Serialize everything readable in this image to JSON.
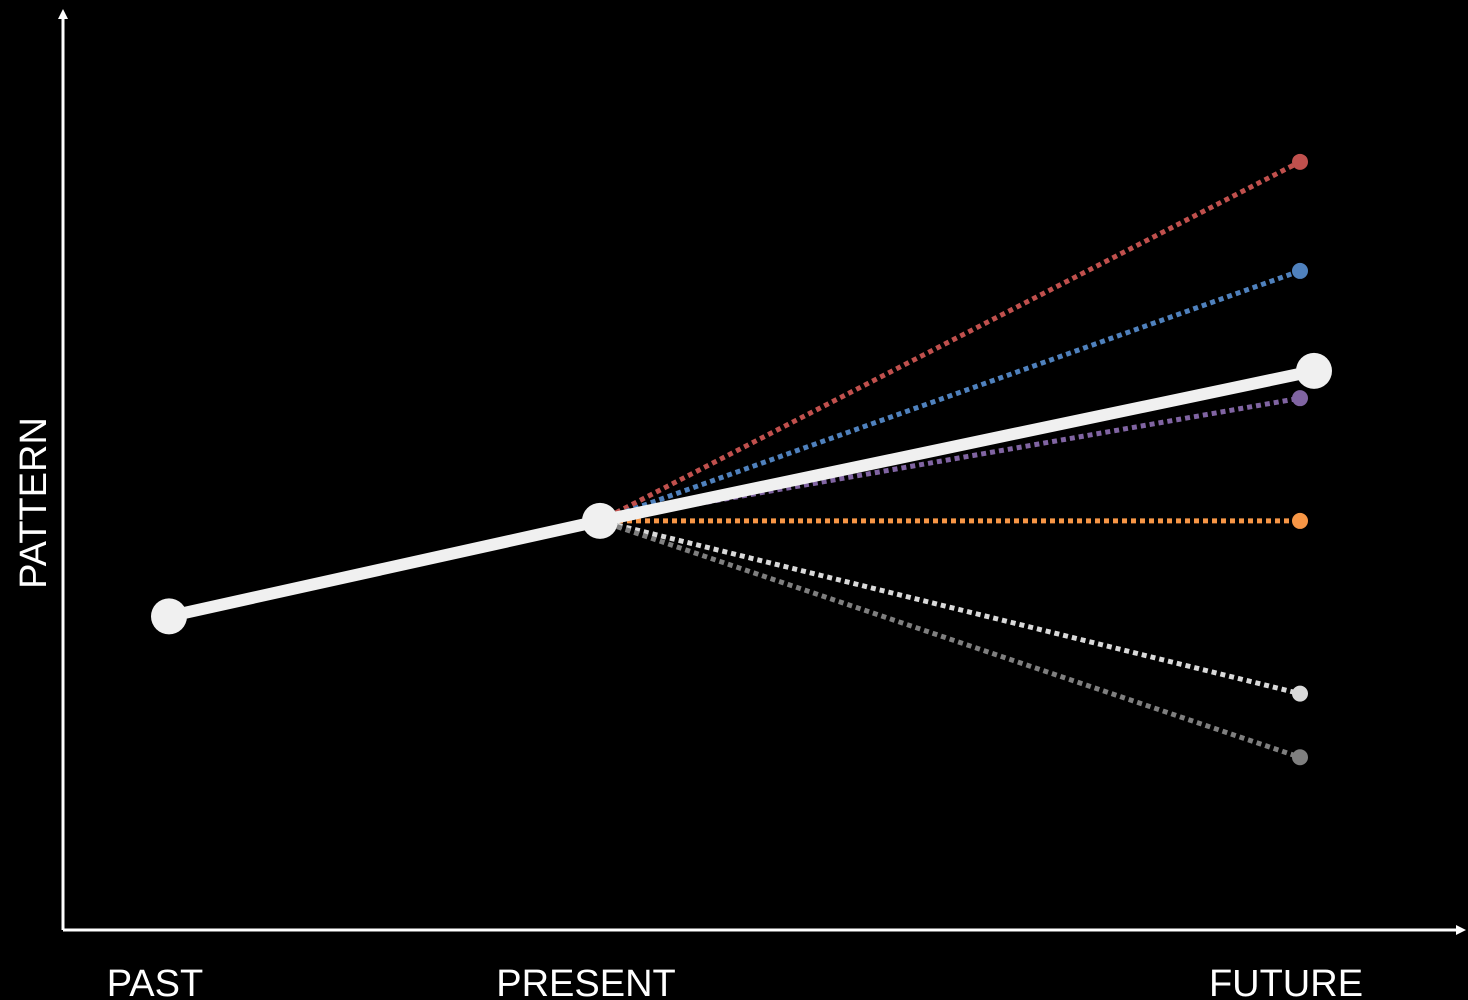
{
  "chart_data": {
    "type": "line",
    "title": "",
    "xlabel": "",
    "ylabel": "PATTERN",
    "categories": [
      "PAST",
      "PRESENT",
      "FUTURE"
    ],
    "main_path": {
      "name": "",
      "color": "#f0f0f0",
      "style": "solid",
      "values": [
        2.45,
        3.5,
        5.15
      ]
    },
    "scenarios": [
      {
        "name": "",
        "color": "#c0504d",
        "style": "dotted",
        "from": "PRESENT",
        "values": [
          3.5,
          7.45
        ]
      },
      {
        "name": "",
        "color": "#4f81bd",
        "style": "dotted",
        "from": "PRESENT",
        "values": [
          3.5,
          6.25
        ]
      },
      {
        "name": "",
        "color": "#8064a2",
        "style": "dotted",
        "from": "PRESENT",
        "values": [
          3.5,
          4.85
        ]
      },
      {
        "name": "",
        "color": "#f79646",
        "style": "dotted",
        "from": "PRESENT",
        "values": [
          3.5,
          3.5
        ]
      },
      {
        "name": "",
        "color": "#d9d9d9",
        "style": "dotted",
        "from": "PRESENT",
        "values": [
          3.5,
          1.6
        ]
      },
      {
        "name": "",
        "color": "#7f7f7f",
        "style": "dotted",
        "from": "PRESENT",
        "values": [
          3.5,
          0.9
        ]
      }
    ],
    "ylim": [
      -1,
      8.9
    ],
    "grid": false,
    "legend": "none"
  }
}
